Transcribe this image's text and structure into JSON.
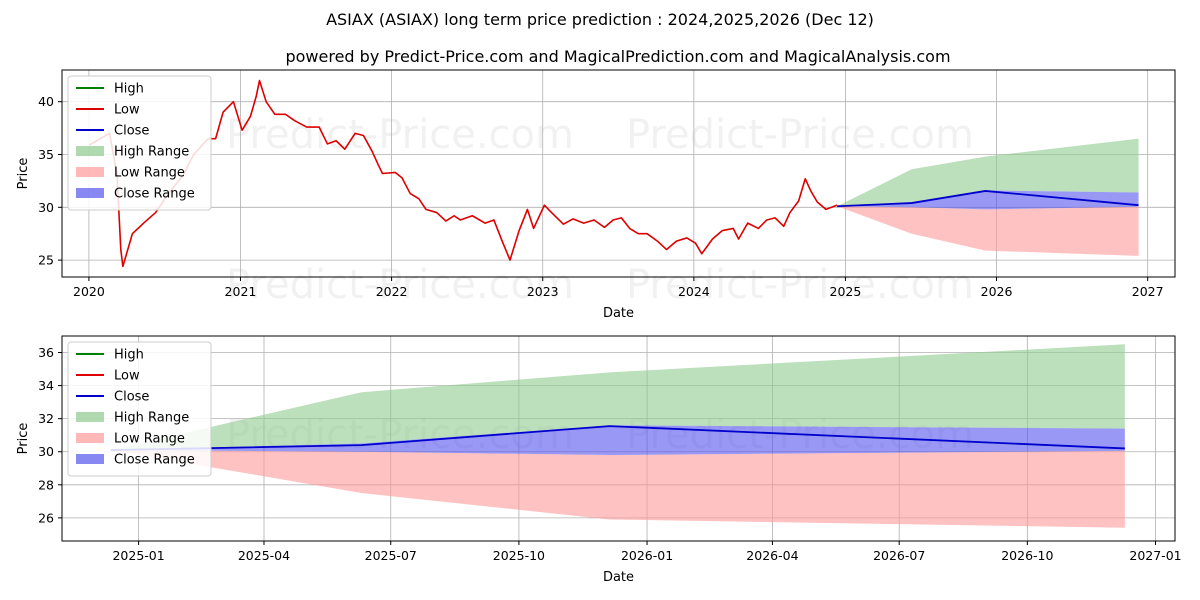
{
  "figure": {
    "title": "ASIAX (ASIAX) long term price prediction : 2024,2025,2026 (Dec 12)",
    "subtitle": "powered by Predict-Price.com and MagicalPrediction.com and MagicalAnalysis.com",
    "watermark": "Predict-Price.com"
  },
  "colors": {
    "high": "#008000",
    "low": "#dd0000",
    "close": "#0000cc",
    "high_range": "#8fc98f",
    "low_range": "#ff9a9a",
    "close_range": "#5555ee"
  },
  "legend": [
    "High",
    "Low",
    "Close",
    "High Range",
    "Low Range",
    "Close Range"
  ],
  "chart_data": [
    {
      "type": "line",
      "xlabel": "Date",
      "ylabel": "Price",
      "xlim": [
        "2019-10-28",
        "2027-03-08"
      ],
      "ylim": [
        23.4,
        43.0
      ],
      "x_ticks": [
        "2020",
        "2021",
        "2022",
        "2023",
        "2024",
        "2025",
        "2026",
        "2027"
      ],
      "y_ticks": [
        25,
        30,
        35,
        40
      ],
      "grid": true,
      "legend_position": "top-left",
      "history": {
        "name": "Low",
        "x": [
          "2020-01-02",
          "2020-02-20",
          "2020-03-09",
          "2020-03-18",
          "2020-03-23",
          "2020-04-15",
          "2020-05-15",
          "2020-06-10",
          "2020-07-15",
          "2020-08-15",
          "2020-09-10",
          "2020-10-15",
          "2020-11-02",
          "2020-11-20",
          "2020-12-15",
          "2021-01-05",
          "2021-01-25",
          "2021-02-08",
          "2021-02-16",
          "2021-03-04",
          "2021-03-25",
          "2021-04-20",
          "2021-05-12",
          "2021-06-10",
          "2021-07-10",
          "2021-07-30",
          "2021-08-20",
          "2021-09-10",
          "2021-10-05",
          "2021-10-25",
          "2021-11-15",
          "2021-11-30",
          "2021-12-10",
          "2022-01-10",
          "2022-01-26",
          "2022-02-15",
          "2022-03-08",
          "2022-03-25",
          "2022-04-20",
          "2022-05-12",
          "2022-06-01",
          "2022-06-16",
          "2022-07-15",
          "2022-08-15",
          "2022-09-05",
          "2022-09-25",
          "2022-10-14",
          "2022-11-05",
          "2022-11-25",
          "2022-12-10",
          "2023-01-05",
          "2023-01-25",
          "2023-02-20",
          "2023-03-15",
          "2023-04-10",
          "2023-05-05",
          "2023-05-30",
          "2023-06-20",
          "2023-07-10",
          "2023-07-30",
          "2023-08-20",
          "2023-09-10",
          "2023-10-05",
          "2023-10-27",
          "2023-11-20",
          "2023-12-15",
          "2024-01-05",
          "2024-01-20",
          "2024-02-15",
          "2024-03-10",
          "2024-04-05",
          "2024-04-18",
          "2024-05-10",
          "2024-06-05",
          "2024-06-25",
          "2024-07-15",
          "2024-08-05",
          "2024-08-20",
          "2024-09-10",
          "2024-09-26",
          "2024-10-10",
          "2024-10-25",
          "2024-11-15",
          "2024-12-12"
        ],
        "values": [
          35.9,
          37.0,
          33.0,
          26.0,
          24.4,
          27.5,
          28.6,
          29.5,
          31.5,
          33.0,
          35.0,
          36.5,
          36.5,
          39.0,
          40.0,
          37.3,
          38.6,
          40.5,
          42.0,
          40.0,
          38.8,
          38.8,
          38.2,
          37.6,
          37.6,
          36.0,
          36.3,
          35.5,
          37.0,
          36.8,
          35.3,
          34.0,
          33.2,
          33.3,
          32.8,
          31.3,
          30.8,
          29.8,
          29.5,
          28.7,
          29.2,
          28.8,
          29.2,
          28.5,
          28.8,
          26.8,
          25.0,
          27.8,
          29.8,
          28.0,
          30.2,
          29.4,
          28.4,
          28.9,
          28.5,
          28.8,
          28.1,
          28.8,
          29.0,
          28.0,
          27.5,
          27.5,
          26.8,
          26.0,
          26.8,
          27.1,
          26.6,
          25.6,
          27.0,
          27.8,
          28.0,
          27.0,
          28.5,
          28.0,
          28.8,
          29.0,
          28.2,
          29.5,
          30.6,
          32.7,
          31.5,
          30.5,
          29.8,
          30.2
        ]
      },
      "forecast": {
        "x": [
          "2024-12-12",
          "2025-06-10",
          "2025-12-05",
          "2026-12-10"
        ],
        "close": [
          30.1,
          30.4,
          31.55,
          30.2
        ],
        "high_range": [
          30.1,
          33.6,
          34.8,
          36.5
        ],
        "low_range": [
          30.1,
          27.5,
          25.9,
          25.4
        ],
        "close_range_upper": [
          30.1,
          30.5,
          31.6,
          31.4
        ],
        "close_range_lower": [
          30.1,
          30.0,
          29.8,
          30.05
        ]
      }
    },
    {
      "type": "area",
      "xlabel": "Date",
      "ylabel": "Price",
      "xlim": [
        "2024-11-07",
        "2027-01-15"
      ],
      "ylim": [
        24.6,
        37.0
      ],
      "x_ticks": [
        "2025-01",
        "2025-04",
        "2025-07",
        "2025-10",
        "2026-01",
        "2026-04",
        "2026-07",
        "2026-10",
        "2027-01"
      ],
      "y_ticks": [
        26,
        28,
        30,
        32,
        34,
        36
      ],
      "grid": true,
      "legend_position": "top-left",
      "forecast": {
        "x": [
          "2024-12-12",
          "2025-06-10",
          "2025-12-05",
          "2026-12-10"
        ],
        "close": [
          30.1,
          30.4,
          31.55,
          30.2
        ],
        "high_range": [
          30.1,
          33.6,
          34.8,
          36.5
        ],
        "low_range": [
          30.1,
          27.5,
          25.9,
          25.4
        ],
        "close_range_upper": [
          30.1,
          30.5,
          31.6,
          31.4
        ],
        "close_range_lower": [
          30.1,
          30.0,
          29.8,
          30.05
        ]
      }
    }
  ]
}
